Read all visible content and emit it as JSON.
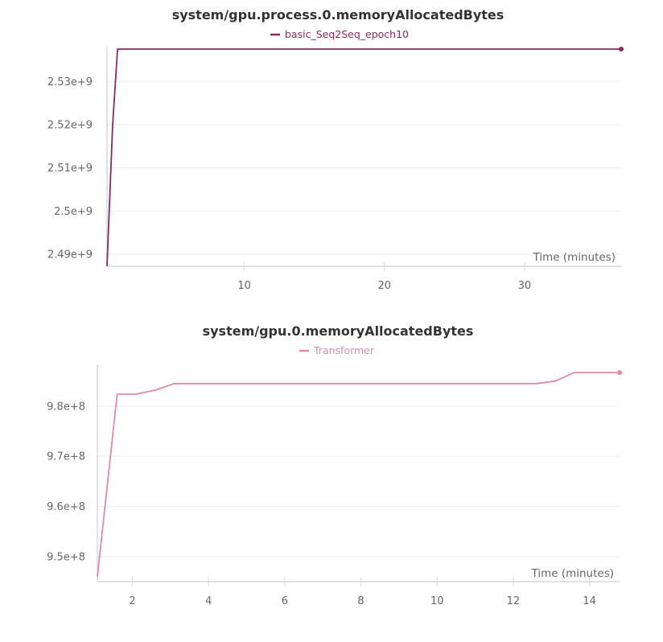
{
  "chart_data": [
    {
      "type": "line",
      "title": "system/gpu.process.0.memoryAllocatedBytes",
      "xlabel": "Time (minutes)",
      "ylabel": "",
      "xlim": [
        0.2,
        36.9
      ],
      "ylim": [
        2487200000.0,
        2537500000.0
      ],
      "x_ticks": [
        10,
        20,
        30
      ],
      "y_ticks": [
        2490000000.0,
        2500000000.0,
        2510000000.0,
        2520000000.0,
        2530000000.0
      ],
      "y_tick_labels": [
        "2.49e+9",
        "2.5e+9",
        "2.51e+9",
        "2.52e+9",
        "2.53e+9"
      ],
      "grid": true,
      "legend_position": "top-center",
      "series": [
        {
          "name": "basic_Seq2Seq_epoch10",
          "color": "#8b2a5e",
          "x": [
            0.2,
            0.6,
            0.95,
            36.9
          ],
          "y": [
            2487200000.0,
            2520000000.0,
            2537500000.0,
            2537500000.0
          ]
        }
      ]
    },
    {
      "type": "line",
      "title": "system/gpu.0.memoryAllocatedBytes",
      "xlabel": "Time (minutes)",
      "ylabel": "",
      "xlim": [
        1.08,
        14.79
      ],
      "ylim": [
        945000000.0,
        988000000.0
      ],
      "x_ticks": [
        2,
        4,
        6,
        8,
        10,
        12,
        14
      ],
      "y_ticks": [
        950000000.0,
        960000000.0,
        970000000.0,
        980000000.0
      ],
      "y_tick_labels": [
        "9.5e+8",
        "9.6e+8",
        "9.7e+8",
        "9.8e+8"
      ],
      "grid": true,
      "legend_position": "top-center",
      "series": [
        {
          "name": "Transformer",
          "color": "#e18aa6",
          "x": [
            1.08,
            1.6,
            2.1,
            2.6,
            3.1,
            12.6,
            13.1,
            13.6,
            14.1,
            14.79
          ],
          "y": [
            946000000.0,
            982400000.0,
            982400000.0,
            983200000.0,
            984500000.0,
            984500000.0,
            985000000.0,
            986700000.0,
            986700000.0,
            986700000.0
          ]
        }
      ]
    }
  ]
}
